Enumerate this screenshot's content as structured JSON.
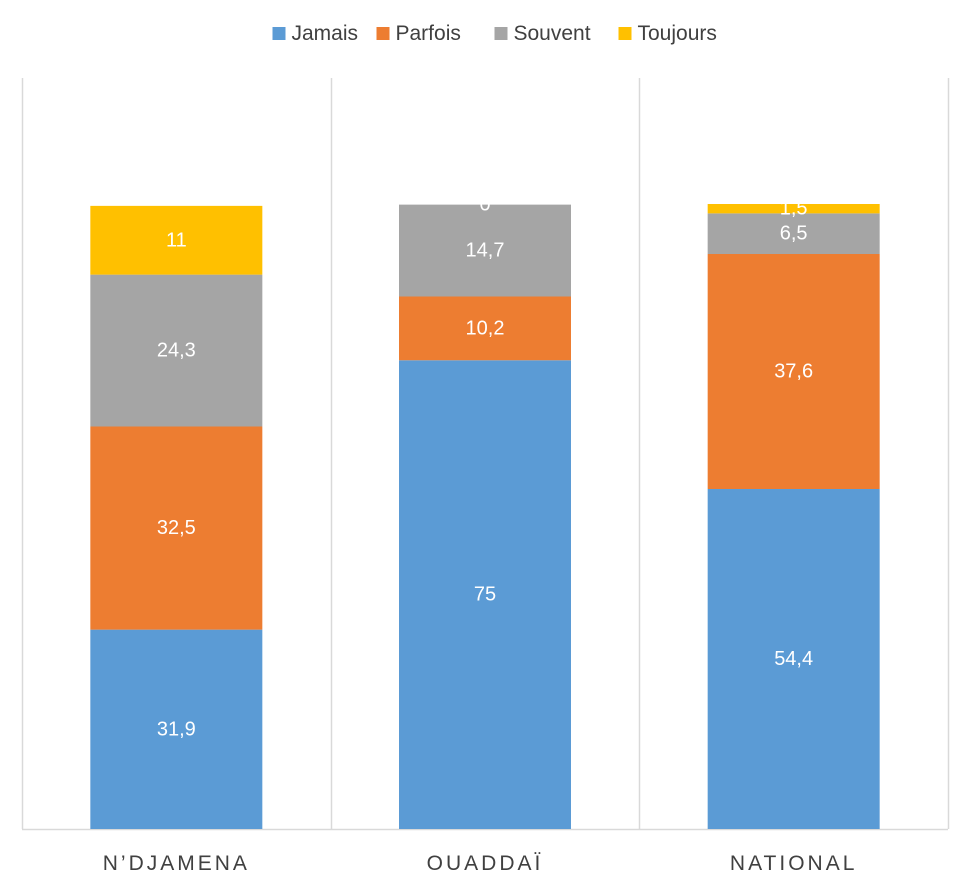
{
  "chart_data": {
    "type": "bar",
    "stacked": true,
    "title": "",
    "xlabel": "",
    "ylabel": "",
    "categories": [
      "N’DJAMENA",
      "OUADDAÏ",
      "NATIONAL"
    ],
    "series": [
      {
        "name": "Jamais",
        "color": "#5B9BD5",
        "values": [
          31.9,
          75,
          54.4
        ]
      },
      {
        "name": "Parfois",
        "color": "#ED7D31",
        "values": [
          32.5,
          10.2,
          37.6
        ]
      },
      {
        "name": "Souvent",
        "color": "#A5A5A5",
        "values": [
          24.3,
          14.7,
          6.5
        ]
      },
      {
        "name": "Toujours",
        "color": "#FFC000",
        "values": [
          11,
          0,
          1.5
        ]
      }
    ],
    "data_labels": [
      [
        "31,9",
        "75",
        "54,4"
      ],
      [
        "32,5",
        "10,2",
        "37,6"
      ],
      [
        "24,3",
        "14,7",
        "6,5"
      ],
      [
        "11",
        "0",
        "1,5"
      ]
    ],
    "ylim": [
      0,
      100
    ],
    "legend_position": "top-center",
    "gridlines": "vertical category separators"
  }
}
